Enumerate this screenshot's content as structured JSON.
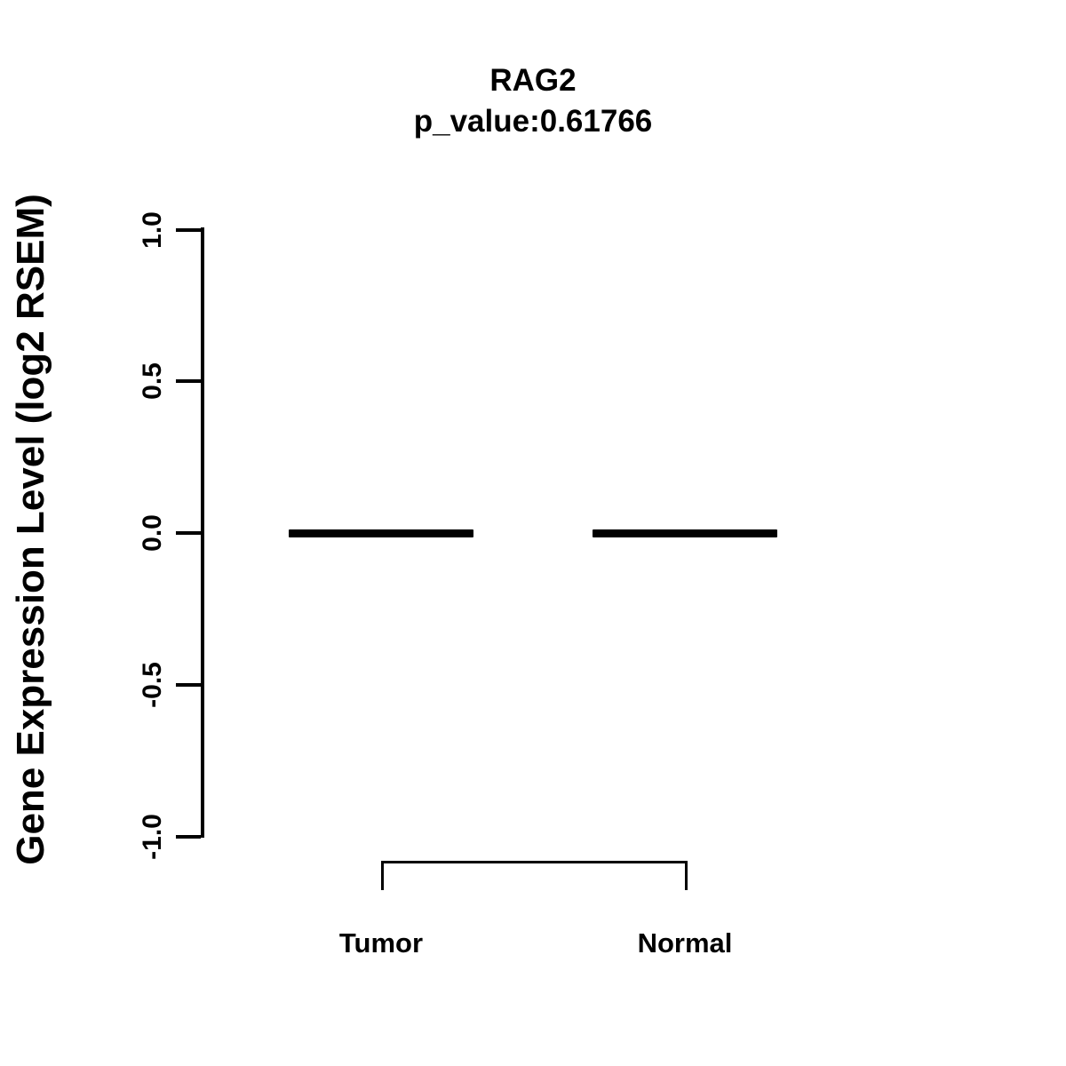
{
  "title": "RAG2",
  "subtitle": "p_value:0.61766",
  "ylabel": "Gene Expression Level (log2 RSEM)",
  "categories": [
    "Tumor",
    "Normal"
  ],
  "colors": {
    "foreground": "#000000",
    "background": "#ffffff"
  },
  "chart_data": {
    "type": "boxplot",
    "title": "RAG2",
    "subtitle": "p_value:0.61766",
    "p_value": 0.61766,
    "xlabel": "",
    "ylabel": "Gene Expression Level (log2 RSEM)",
    "categories": [
      "Tumor",
      "Normal"
    ],
    "series": [
      {
        "name": "Tumor",
        "min": 0.0,
        "q1": 0.0,
        "median": 0.0,
        "q3": 0.0,
        "max": 0.0
      },
      {
        "name": "Normal",
        "min": 0.0,
        "q1": 0.0,
        "median": 0.0,
        "q3": 0.0,
        "max": 0.0
      }
    ],
    "ylim": [
      -1.0,
      1.0
    ],
    "y_ticks": [
      1.0,
      0.5,
      0.0,
      -0.5,
      -1.0
    ],
    "y_tick_labels": [
      "1.0",
      "0.5",
      "0.0",
      "-0.5",
      "-1.0"
    ],
    "grid": false,
    "legend": false,
    "annotations": [
      "comparison bracket linking Tumor and Normal groups"
    ]
  }
}
